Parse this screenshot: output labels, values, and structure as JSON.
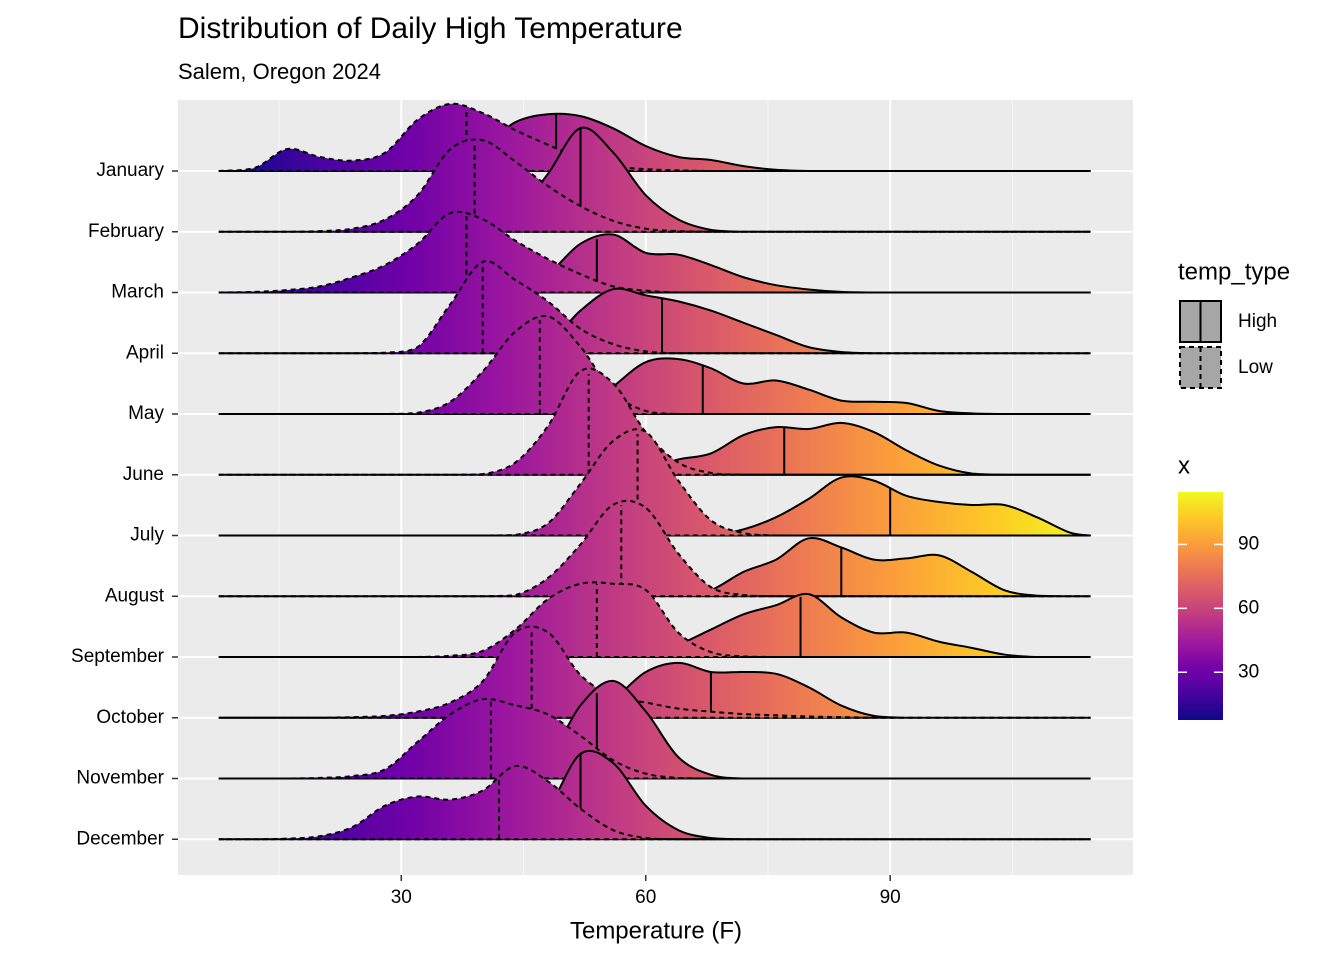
{
  "chart_data": {
    "type": "ridgeline",
    "title": "Distribution of Daily High Temperature",
    "subtitle": "Salem, Oregon 2024",
    "x_label": "Temperature (F)",
    "categories": [
      "January",
      "February",
      "March",
      "April",
      "May",
      "June",
      "July",
      "August",
      "September",
      "October",
      "November",
      "December"
    ],
    "x": [
      7.6,
      12,
      16,
      20,
      24,
      28,
      32,
      36,
      40,
      44,
      48,
      52,
      56,
      60,
      64,
      68,
      72,
      76,
      80,
      84,
      88,
      92,
      96,
      100,
      104,
      108,
      112,
      114.6
    ],
    "series": [
      {
        "name": "High",
        "linetype": "solid",
        "medians": [
          49,
          52,
          54,
          62,
          67,
          77,
          90,
          84,
          79,
          68,
          54,
          52
        ],
        "values": [
          [
            0,
            0,
            0,
            0.02,
            0.1,
            0.2,
            0.2,
            0.3,
            0.4,
            0.8,
            0.93,
            0.9,
            0.7,
            0.41,
            0.23,
            0.18,
            0.08,
            0.02,
            0,
            0,
            0,
            0,
            0,
            0,
            0,
            0,
            0,
            0
          ],
          [
            0,
            0,
            0,
            0,
            0,
            0,
            0,
            0,
            0.01,
            0.3,
            0.95,
            1.7,
            1.3,
            0.6,
            0.2,
            0.03,
            0,
            0,
            0,
            0,
            0,
            0,
            0,
            0,
            0,
            0,
            0,
            0
          ],
          [
            0,
            0,
            0,
            0,
            0,
            0,
            0,
            0,
            0,
            0.02,
            0.3,
            0.8,
            0.95,
            0.65,
            0.62,
            0.45,
            0.25,
            0.12,
            0.05,
            0.01,
            0,
            0,
            0,
            0,
            0,
            0,
            0,
            0
          ],
          [
            0,
            0,
            0,
            0,
            0,
            0,
            0,
            0,
            0,
            0.02,
            0.15,
            0.7,
            1.05,
            0.95,
            0.85,
            0.7,
            0.5,
            0.3,
            0.1,
            0.02,
            0,
            0,
            0,
            0,
            0,
            0,
            0,
            0
          ],
          [
            0,
            0,
            0,
            0,
            0,
            0,
            0,
            0,
            0,
            0,
            0,
            0.05,
            0.45,
            0.85,
            0.9,
            0.75,
            0.5,
            0.55,
            0.4,
            0.22,
            0.2,
            0.18,
            0.05,
            0.01,
            0,
            0,
            0,
            0
          ],
          [
            0,
            0,
            0,
            0,
            0,
            0,
            0,
            0,
            0,
            0,
            0,
            0,
            0.02,
            0.1,
            0.25,
            0.35,
            0.65,
            0.78,
            0.75,
            0.85,
            0.7,
            0.4,
            0.15,
            0.02,
            0,
            0,
            0,
            0
          ],
          [
            0,
            0,
            0,
            0,
            0,
            0,
            0,
            0,
            0,
            0,
            0,
            0,
            0,
            0,
            0,
            0,
            0.1,
            0.3,
            0.6,
            0.95,
            0.9,
            0.65,
            0.55,
            0.5,
            0.5,
            0.3,
            0.05,
            0
          ],
          [
            0,
            0,
            0,
            0,
            0,
            0,
            0,
            0,
            0,
            0,
            0,
            0,
            0,
            0,
            0,
            0.1,
            0.4,
            0.6,
            0.95,
            0.8,
            0.6,
            0.62,
            0.67,
            0.4,
            0.1,
            0.01,
            0,
            0
          ],
          [
            0,
            0,
            0,
            0,
            0,
            0,
            0,
            0,
            0,
            0,
            0,
            0,
            0,
            0.02,
            0.2,
            0.45,
            0.7,
            0.85,
            1.03,
            0.65,
            0.4,
            0.4,
            0.25,
            0.15,
            0.04,
            0,
            0,
            0
          ],
          [
            0,
            0,
            0,
            0,
            0,
            0,
            0,
            0,
            0,
            0,
            0,
            0.02,
            0.3,
            0.75,
            0.9,
            0.75,
            0.75,
            0.72,
            0.5,
            0.2,
            0.03,
            0,
            0,
            0,
            0,
            0,
            0,
            0
          ],
          [
            0,
            0,
            0,
            0,
            0,
            0,
            0,
            0,
            0,
            0.02,
            0.3,
            1.2,
            1.6,
            1.1,
            0.35,
            0.06,
            0,
            0,
            0,
            0,
            0,
            0,
            0,
            0,
            0,
            0,
            0,
            0
          ],
          [
            0,
            0,
            0,
            0,
            0,
            0,
            0,
            0,
            0,
            0.05,
            0.5,
            1.4,
            1.25,
            0.55,
            0.15,
            0.02,
            0,
            0,
            0,
            0,
            0,
            0,
            0,
            0,
            0,
            0,
            0,
            0
          ]
        ]
      },
      {
        "name": "Low",
        "linetype": "dashed",
        "medians": [
          38,
          39,
          38,
          40,
          47,
          53,
          59,
          57,
          54,
          46,
          41,
          42
        ],
        "values": [
          [
            0,
            0.05,
            0.36,
            0.23,
            0.17,
            0.3,
            0.84,
            1.1,
            0.95,
            0.67,
            0.43,
            0.21,
            0.08,
            0.03,
            0.01,
            0,
            0,
            0,
            0,
            0,
            0,
            0,
            0,
            0,
            0,
            0,
            0,
            0
          ],
          [
            0,
            0,
            0,
            0.01,
            0.05,
            0.2,
            0.6,
            1.35,
            1.5,
            1.15,
            0.75,
            0.42,
            0.18,
            0.05,
            0.01,
            0,
            0,
            0,
            0,
            0,
            0,
            0,
            0,
            0,
            0,
            0,
            0,
            0
          ],
          [
            0,
            0.01,
            0.04,
            0.1,
            0.25,
            0.45,
            0.8,
            1.3,
            1.2,
            0.85,
            0.55,
            0.3,
            0.1,
            0.03,
            0,
            0,
            0,
            0,
            0,
            0,
            0,
            0,
            0,
            0,
            0,
            0,
            0,
            0
          ],
          [
            0,
            0,
            0,
            0,
            0,
            0.01,
            0.1,
            0.8,
            1.5,
            1.2,
            0.85,
            0.4,
            0.15,
            0.03,
            0,
            0,
            0,
            0,
            0,
            0,
            0,
            0,
            0,
            0,
            0,
            0,
            0,
            0
          ],
          [
            0,
            0,
            0,
            0,
            0,
            0,
            0.02,
            0.2,
            0.7,
            1.35,
            1.6,
            1.1,
            0.35,
            0.05,
            0,
            0,
            0,
            0,
            0,
            0,
            0,
            0,
            0,
            0,
            0,
            0,
            0,
            0
          ],
          [
            0,
            0,
            0,
            0,
            0,
            0,
            0,
            0,
            0.01,
            0.2,
            0.8,
            1.7,
            1.5,
            0.7,
            0.2,
            0.03,
            0,
            0,
            0,
            0,
            0,
            0,
            0,
            0,
            0,
            0,
            0,
            0
          ],
          [
            0,
            0,
            0,
            0,
            0,
            0,
            0,
            0,
            0,
            0.01,
            0.2,
            0.85,
            1.55,
            1.7,
            0.9,
            0.25,
            0.04,
            0,
            0,
            0,
            0,
            0,
            0,
            0,
            0,
            0,
            0,
            0
          ],
          [
            0,
            0,
            0,
            0,
            0,
            0,
            0,
            0,
            0,
            0.02,
            0.3,
            0.85,
            1.5,
            1.45,
            0.7,
            0.15,
            0.02,
            0,
            0,
            0,
            0,
            0,
            0,
            0,
            0,
            0,
            0,
            0
          ],
          [
            0,
            0,
            0,
            0,
            0,
            0,
            0,
            0.02,
            0.1,
            0.45,
            0.95,
            1.2,
            1.2,
            1.1,
            0.4,
            0.08,
            0.01,
            0,
            0,
            0,
            0,
            0,
            0,
            0,
            0,
            0,
            0,
            0
          ],
          [
            0,
            0,
            0,
            0,
            0.01,
            0.03,
            0.1,
            0.25,
            0.6,
            1.4,
            1.4,
            0.7,
            0.35,
            0.25,
            0.15,
            0.1,
            0.06,
            0.04,
            0.02,
            0.01,
            0,
            0,
            0,
            0,
            0,
            0,
            0,
            0
          ],
          [
            0,
            0,
            0,
            0.01,
            0.04,
            0.15,
            0.6,
            1.05,
            1.3,
            1.2,
            1.05,
            0.7,
            0.3,
            0.08,
            0.01,
            0,
            0,
            0,
            0,
            0,
            0,
            0,
            0,
            0,
            0,
            0,
            0,
            0
          ],
          [
            0,
            0,
            0.01,
            0.05,
            0.2,
            0.55,
            0.7,
            0.65,
            0.8,
            1.2,
            0.95,
            0.5,
            0.15,
            0.02,
            0,
            0,
            0,
            0,
            0,
            0,
            0,
            0,
            0,
            0,
            0,
            0,
            0,
            0
          ]
        ]
      }
    ],
    "xlim": [
      2.6,
      119.8
    ],
    "xticks": [
      30,
      60,
      90
    ],
    "x_minor_ticks": [
      15,
      45,
      75,
      105
    ],
    "grid": true,
    "legend_title": "temp_type",
    "legend_fill": "#a6a6a6",
    "colorbar_title": "x",
    "colorbar_lim": [
      7.6,
      114.6
    ],
    "colorbar_ticks": [
      30,
      60,
      90
    ],
    "colors": [
      "#0d0887",
      "#46039f",
      "#7201a8",
      "#9c179e",
      "#bd3786",
      "#d8576b",
      "#ed7953",
      "#fb9f3a",
      "#fdca26",
      "#f0f921"
    ]
  }
}
